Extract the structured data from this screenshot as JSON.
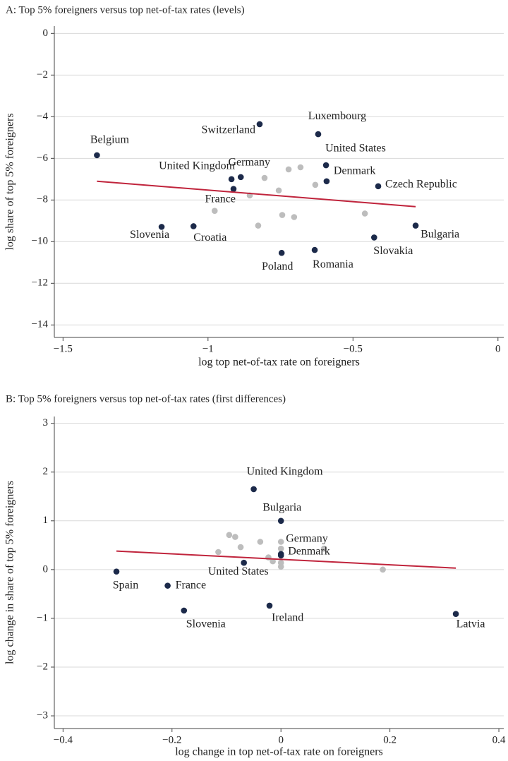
{
  "chart_data": [
    {
      "type": "scatter",
      "title": "A: Top 5% foreigners versus top net-of-tax rates (levels)",
      "x_label": "log top net-of-tax rate on foreigners",
      "y_label": "log share of top 5% foreigners",
      "xlim": [
        -1.53,
        0.02
      ],
      "ylim": [
        -14.6,
        0.35
      ],
      "xticks": [
        {
          "value": -1.5,
          "label": "−1.5"
        },
        {
          "value": -1,
          "label": "−1"
        },
        {
          "value": -0.5,
          "label": "−0.5"
        },
        0
      ],
      "yticks": [
        0,
        {
          "value": -2,
          "label": "−2"
        },
        {
          "value": -4,
          "label": "−4"
        },
        {
          "value": -6,
          "label": "−6"
        },
        {
          "value": -8,
          "label": "−8"
        },
        {
          "value": -10,
          "label": "−10"
        },
        {
          "value": -12,
          "label": "−12"
        },
        {
          "value": -14,
          "label": "−14"
        }
      ],
      "grid": true,
      "series": [
        {
          "color": "#1c2a4a",
          "labels": [
            "Belgium",
            "Switzerland",
            "Luxembourg",
            "United States",
            "Denmark",
            "Czech Republic",
            "Germany",
            "United Kingdom",
            "France",
            "Bulgaria",
            "Slovakia",
            "Romania",
            "Poland",
            "Croatia",
            "Slovenia"
          ],
          "x": [
            -1.383,
            -0.822,
            -0.62,
            -0.593,
            -0.591,
            -0.413,
            -0.887,
            -0.919,
            -0.912,
            -0.284,
            -0.427,
            -0.632,
            -0.746,
            -1.05,
            -1.16
          ],
          "values": [
            -5.85,
            -4.36,
            -4.84,
            -6.33,
            -7.1,
            -7.34,
            -6.9,
            -7.0,
            -7.47,
            -9.23,
            -9.8,
            -10.4,
            -10.54,
            -9.26,
            -9.29
          ]
        },
        {
          "color": "#bdbdbd",
          "x": [
            -0.805,
            -0.722,
            -0.681,
            -0.63,
            -0.756,
            -0.856,
            -0.977,
            -0.744,
            -0.703,
            -0.827,
            -0.459
          ],
          "values": [
            -6.94,
            -6.53,
            -6.43,
            -7.27,
            -7.54,
            -7.78,
            -8.52,
            -8.72,
            -8.82,
            -9.23,
            -8.65
          ]
        }
      ],
      "fit": {
        "color": "#c0243c",
        "x": [
          -1.383,
          -0.284
        ],
        "values": [
          -7.1,
          -8.32
        ]
      }
    },
    {
      "type": "scatter",
      "title": "B: Top 5% foreigners versus top net-of-tax rates (first differences)",
      "x_label": "log change in top net-of-tax rate on foreigners",
      "y_label": "log change in share of top 5% foreigners",
      "xlim": [
        -0.416,
        0.409
      ],
      "ylim": [
        -3.26,
        3.14
      ],
      "xticks": [
        {
          "value": -0.4,
          "label": "−0.4"
        },
        {
          "value": -0.2,
          "label": "−0.2"
        },
        0,
        0.2,
        0.4
      ],
      "yticks": [
        3,
        2,
        1,
        0,
        {
          "value": -1,
          "label": "−1"
        },
        {
          "value": -2,
          "label": "−2"
        },
        {
          "value": -3,
          "label": "−3"
        }
      ],
      "grid": true,
      "series": [
        {
          "color": "#1c2a4a",
          "labels": [
            "United Kingdom",
            "Bulgaria",
            "Germany",
            "Denmark",
            "United States",
            "Spain",
            "France",
            "Slovenia",
            "Ireland",
            "Latvia"
          ],
          "x": [
            -0.05,
            0,
            0,
            0,
            -0.068,
            -0.302,
            -0.208,
            -0.178,
            -0.021,
            0.321
          ],
          "values": [
            1.65,
            1.0,
            0.32,
            0.29,
            0.14,
            -0.04,
            -0.33,
            -0.84,
            -0.74,
            -0.91
          ]
        },
        {
          "color": "#bdbdbd",
          "x": [
            -0.095,
            -0.084,
            -0.074,
            -0.115,
            -0.038,
            0,
            0,
            0.079,
            -0.023,
            -0.015,
            0,
            0,
            0.187
          ],
          "values": [
            0.71,
            0.67,
            0.46,
            0.36,
            0.57,
            0.57,
            0.43,
            0.43,
            0.25,
            0.17,
            0.14,
            0.06,
            0.0
          ]
        }
      ],
      "fit": {
        "color": "#c0243c",
        "x": [
          -0.302,
          0.321
        ],
        "values": [
          0.38,
          0.03
        ]
      }
    }
  ]
}
